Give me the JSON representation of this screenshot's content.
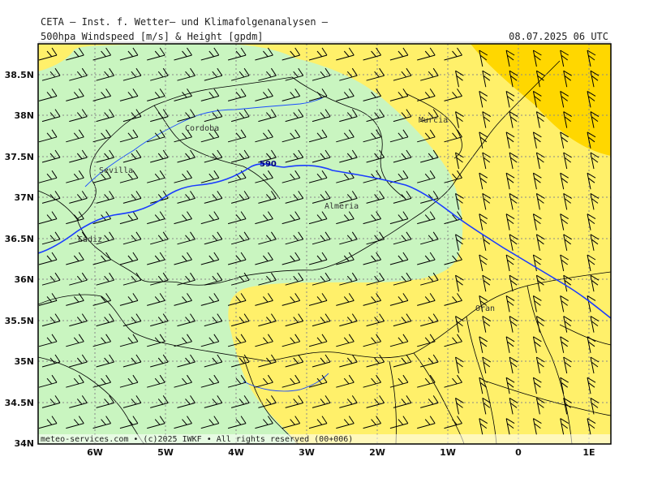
{
  "header": {
    "line1": "CETA — Inst. f. Wetter— und Klimafolgenanalysen —",
    "line2": "500hpa Windspeed [m/s] & Height [gpdm]",
    "datetime": "08.07.2025  06 UTC"
  },
  "map": {
    "lat_labels": [
      "38.5N",
      "38N",
      "37.5N",
      "37N",
      "36.5N",
      "36N",
      "35.5N",
      "35N",
      "34.5N",
      "34N"
    ],
    "lon_labels": [
      "6W",
      "5W",
      "4W",
      "3W",
      "2W",
      "1W",
      "0",
      "1E"
    ],
    "cities": [
      "Cordoba",
      "Murcia",
      "Sevilla",
      "Almeria",
      "Cadiz",
      "Oran"
    ],
    "isoline_label": "590",
    "footer": "meteo-services.com • (c)2025 IWKF • All rights reserved (00+006)"
  },
  "colors": {
    "light_green": "#c9f5c0",
    "yellow": "#fff06a",
    "dark_yellow": "#ffd700",
    "isoline": "#1a3cff",
    "coast": "#1a4cff",
    "borders": "#000000",
    "grid": "#999999"
  }
}
